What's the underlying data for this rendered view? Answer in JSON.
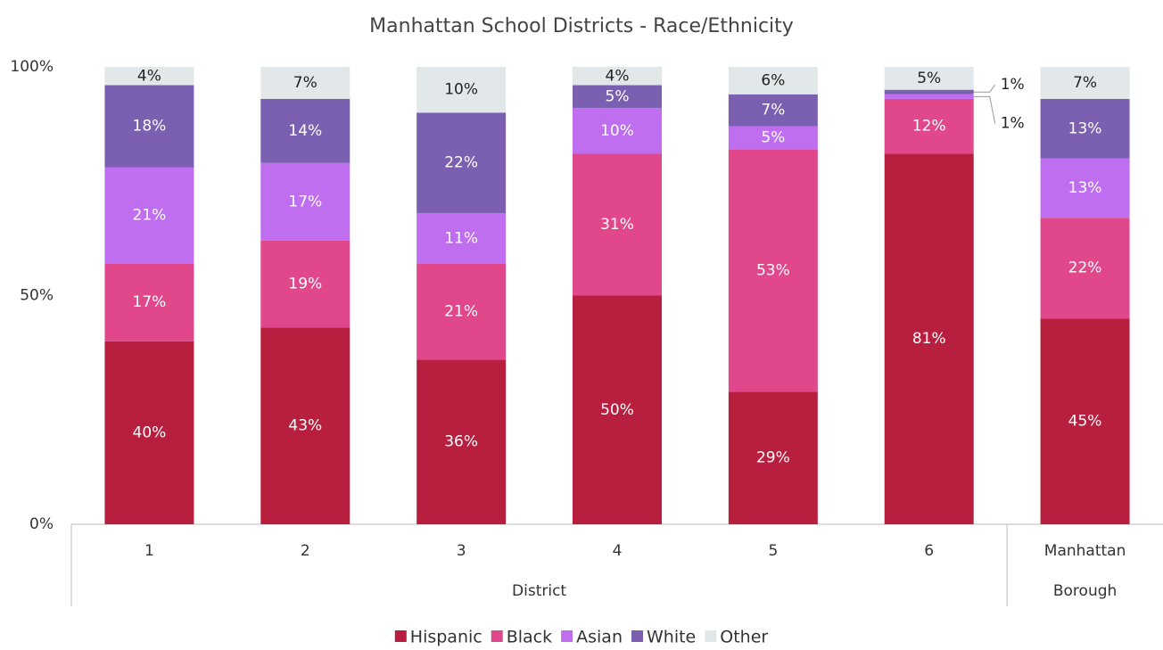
{
  "chart_data": {
    "type": "stacked_bar",
    "title": "Manhattan School Districts - Race/Ethnicity",
    "categories": [
      "1",
      "2",
      "3",
      "4",
      "5",
      "6",
      "Manhattan"
    ],
    "groups": [
      {
        "name": "District",
        "count": 6
      },
      {
        "name": "Borough",
        "count": 1
      }
    ],
    "series": [
      {
        "name": "Hispanic",
        "color": "#b81e3e",
        "label_color": "#ffffff",
        "values": [
          40,
          43,
          36,
          50,
          29,
          81,
          45
        ],
        "value_labels": [
          "40%",
          "43%",
          "36%",
          "50%",
          "29%",
          "81%",
          "45%"
        ]
      },
      {
        "name": "Black",
        "color": "#e0488b",
        "label_color": "#ffffff",
        "values": [
          17,
          19,
          21,
          31,
          53,
          12,
          22
        ],
        "value_labels": [
          "17%",
          "19%",
          "21%",
          "31%",
          "53%",
          "12%",
          "22%"
        ]
      },
      {
        "name": "Asian",
        "color": "#bf6ef0",
        "label_color": "#ffffff",
        "values": [
          21,
          17,
          11,
          10,
          5,
          1,
          13
        ],
        "value_labels": [
          "21%",
          "17%",
          "11%",
          "10%",
          "5%",
          "1%",
          "13%"
        ]
      },
      {
        "name": "White",
        "color": "#7b5fb0",
        "label_color": "#ffffff",
        "values": [
          18,
          14,
          22,
          5,
          7,
          1,
          13
        ],
        "value_labels": [
          "18%",
          "14%",
          "22%",
          "5%",
          "7%",
          "1%",
          "13%"
        ]
      },
      {
        "name": "Other",
        "color": "#e2e8ea",
        "label_color": "#222222",
        "values": [
          4,
          7,
          10,
          4,
          6,
          5,
          7
        ],
        "value_labels": [
          "4%",
          "7%",
          "10%",
          "4%",
          "6%",
          "5%",
          "7%"
        ]
      }
    ],
    "ylim": [
      0,
      100
    ],
    "yticks": [
      {
        "value": 0,
        "label": "0%"
      },
      {
        "value": 50,
        "label": "50%"
      },
      {
        "value": 100,
        "label": "100%"
      }
    ],
    "grid": false,
    "legend": "bottom"
  }
}
